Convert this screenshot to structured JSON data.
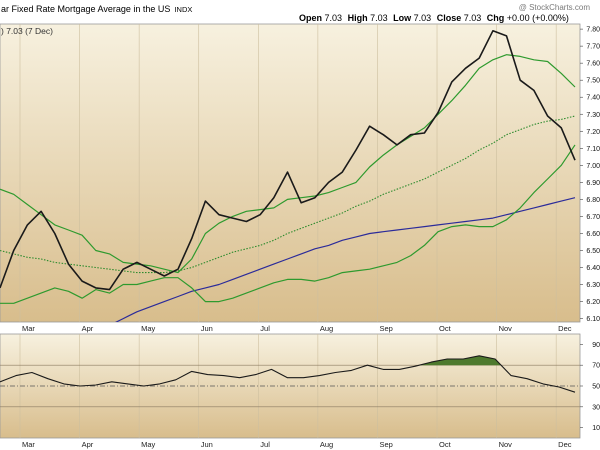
{
  "header": {
    "title": "ar Fixed Rate Mortgage Average in the US",
    "source": "INDX",
    "watermark": "@ StockCharts.com",
    "ohlc": [
      {
        "label": "Open",
        "value": "7.03"
      },
      {
        "label": "High",
        "value": "7.03"
      },
      {
        "label": "Low",
        "value": "7.03"
      },
      {
        "label": "Close",
        "value": "7.03"
      },
      {
        "label": "Chg",
        "value": "+0.00 (+0.00%)"
      }
    ],
    "price_legend": ") 7.03 (7 Dec)"
  },
  "colors": {
    "price": "#1a1a1a",
    "ma_short": "#2e9a2e",
    "ma_dotted": "#2e8b2e",
    "ma_long": "#2b2b9a",
    "rsi_fill": "#4e7a2e",
    "panel_top": "#f7f1df",
    "panel_bottom": "#d8bd8c"
  },
  "chart_data": [
    {
      "type": "line",
      "title": "ar Fixed Rate Mortgage Average in the US",
      "x_tick_labels": [
        "Mar",
        "Apr",
        "May",
        "Jun",
        "Jul",
        "Aug",
        "Sep",
        "Oct",
        "Nov",
        "Dec"
      ],
      "y_tick_labels": [
        "6.10",
        "6.20",
        "6.30",
        "6.40",
        "6.50",
        "6.60",
        "6.70",
        "6.80",
        "6.90",
        "7.00",
        "7.10",
        "7.20",
        "7.30",
        "7.40",
        "7.50",
        "7.60",
        "7.70",
        "7.80"
      ],
      "ylim": [
        6.08,
        7.83
      ],
      "grid": false,
      "series": [
        {
          "style": "price",
          "values": [
            6.28,
            6.5,
            6.65,
            6.73,
            6.6,
            6.42,
            6.32,
            6.28,
            6.27,
            6.39,
            6.43,
            6.39,
            6.35,
            6.39,
            6.57,
            6.79,
            6.71,
            6.69,
            6.67,
            6.71,
            6.81,
            6.96,
            6.78,
            6.81,
            6.9,
            6.96,
            7.09,
            7.23,
            7.18,
            7.12,
            7.18,
            7.19,
            7.31,
            7.49,
            7.57,
            7.63,
            7.79,
            7.76,
            7.5,
            7.44,
            7.29,
            7.22,
            7.03
          ]
        },
        {
          "style": "ma_short",
          "values": [
            6.19,
            6.19,
            6.22,
            6.25,
            6.28,
            6.26,
            6.22,
            6.27,
            6.25,
            6.3,
            6.3,
            6.32,
            6.34,
            6.34,
            6.28,
            6.2,
            6.2,
            6.22,
            6.25,
            6.28,
            6.31,
            6.33,
            6.33,
            6.32,
            6.34,
            6.37,
            6.38,
            6.39,
            6.41,
            6.43,
            6.47,
            6.53,
            6.61,
            6.64,
            6.65,
            6.64,
            6.64,
            6.68,
            6.75,
            6.84,
            6.92,
            7.0,
            7.12
          ]
        },
        {
          "style": "ma_medium",
          "values": [
            6.86,
            6.83,
            6.77,
            6.71,
            6.65,
            6.62,
            6.59,
            6.5,
            6.48,
            6.43,
            6.42,
            6.41,
            6.39,
            6.37,
            6.45,
            6.6,
            6.66,
            6.7,
            6.73,
            6.74,
            6.75,
            6.8,
            6.81,
            6.82,
            6.84,
            6.87,
            6.9,
            6.99,
            7.06,
            7.12,
            7.17,
            7.22,
            7.3,
            7.38,
            7.47,
            7.57,
            7.62,
            7.65,
            7.64,
            7.62,
            7.61,
            7.54,
            7.46
          ]
        },
        {
          "style": "ma_dotted",
          "values": [
            6.5,
            6.48,
            6.46,
            6.45,
            6.43,
            6.42,
            6.41,
            6.4,
            6.39,
            6.38,
            6.37,
            6.37,
            6.37,
            6.38,
            6.4,
            6.43,
            6.46,
            6.49,
            6.51,
            6.53,
            6.56,
            6.6,
            6.63,
            6.66,
            6.69,
            6.72,
            6.76,
            6.79,
            6.83,
            6.86,
            6.89,
            6.92,
            6.96,
            7.0,
            7.04,
            7.09,
            7.13,
            7.18,
            7.21,
            7.24,
            7.26,
            7.27,
            7.29
          ]
        },
        {
          "style": "ma_long",
          "values": [
            null,
            null,
            null,
            null,
            null,
            null,
            null,
            6.01,
            6.06,
            6.1,
            6.14,
            6.17,
            6.2,
            6.23,
            6.26,
            6.28,
            6.3,
            6.33,
            6.36,
            6.39,
            6.42,
            6.45,
            6.48,
            6.51,
            6.53,
            6.56,
            6.58,
            6.6,
            6.61,
            6.62,
            6.63,
            6.64,
            6.65,
            6.66,
            6.67,
            6.68,
            6.69,
            6.71,
            6.73,
            6.75,
            6.77,
            6.79,
            6.81
          ]
        }
      ]
    },
    {
      "type": "line",
      "x_tick_labels": [
        "Mar",
        "Apr",
        "May",
        "Jun",
        "Jul",
        "Aug",
        "Sep",
        "Oct",
        "Nov",
        "Dec"
      ],
      "y_tick_labels": [
        "10",
        "30",
        "50",
        "70",
        "90"
      ],
      "ylim": [
        0,
        100
      ],
      "reference_lines": [
        30,
        50,
        70
      ],
      "overbought_fill_above": 70,
      "series": [
        {
          "style": "price",
          "values": [
            54,
            60,
            63,
            57,
            52,
            50,
            51,
            54,
            52,
            50,
            52,
            56,
            64,
            61,
            60,
            58,
            61,
            66,
            58,
            58,
            60,
            63,
            65,
            70,
            66,
            66,
            69,
            73,
            76,
            76,
            79,
            76,
            60,
            57,
            52,
            49,
            44
          ]
        }
      ]
    }
  ]
}
